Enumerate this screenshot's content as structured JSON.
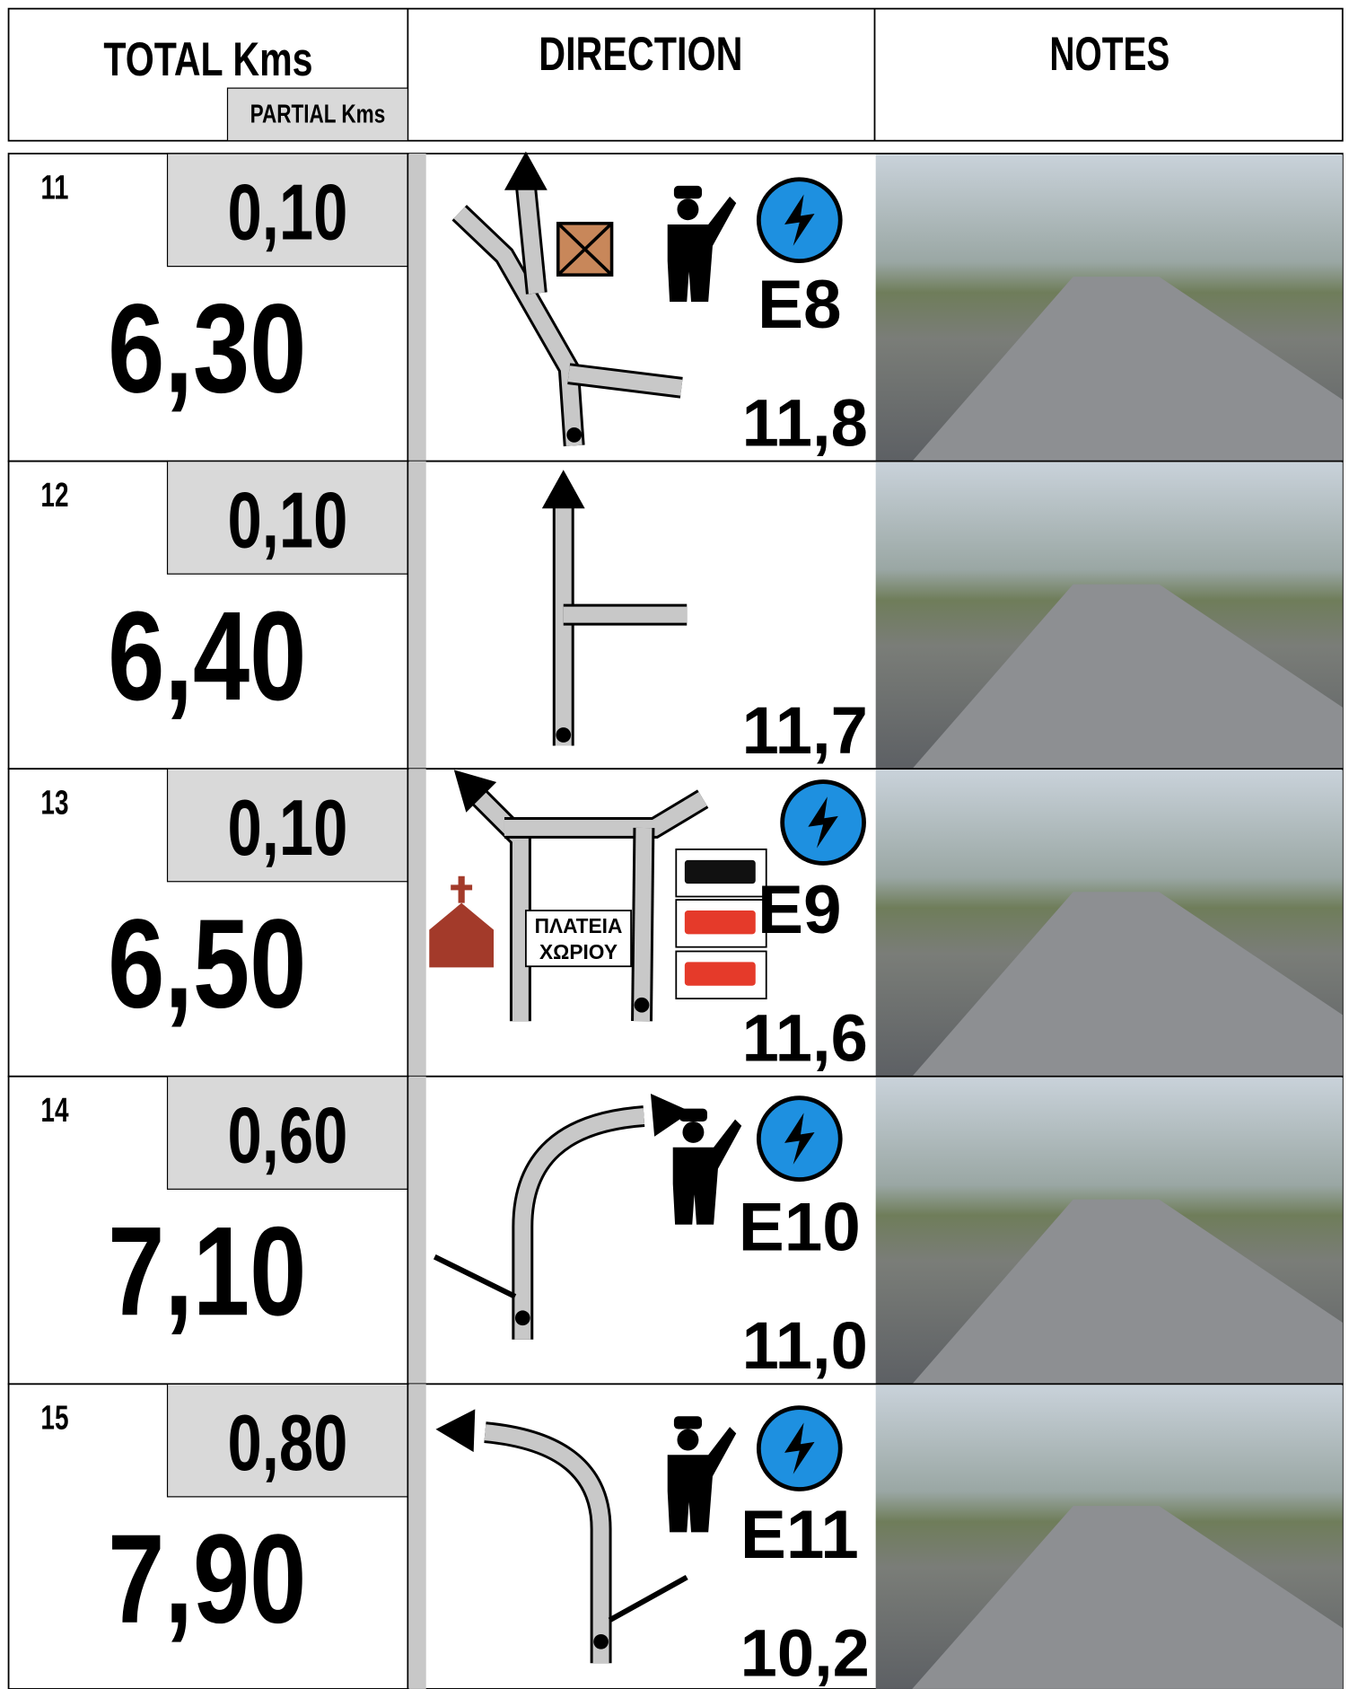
{
  "header": {
    "total": "TOTAL Kms",
    "partial": "PARTIAL Kms",
    "direction": "DIRECTION",
    "notes": "NOTES"
  },
  "rows": [
    {
      "number": "11",
      "partial": "0,10",
      "total": "6,30",
      "marker": "E8",
      "reading": "11,8"
    },
    {
      "number": "12",
      "partial": "0,10",
      "total": "6,40",
      "reading": "11,7"
    },
    {
      "number": "13",
      "partial": "0,10",
      "total": "6,50",
      "marker": "E9",
      "reading": "11,6",
      "sign": [
        "ΠΛΑΤΕΙΑ",
        "ΧΩΡΙΟΥ"
      ]
    },
    {
      "number": "14",
      "partial": "0,60",
      "total": "7,10",
      "marker": "E10",
      "reading": "11,0"
    },
    {
      "number": "15",
      "partial": "0,80",
      "total": "7,90",
      "marker": "E11",
      "reading": "10,2"
    }
  ]
}
